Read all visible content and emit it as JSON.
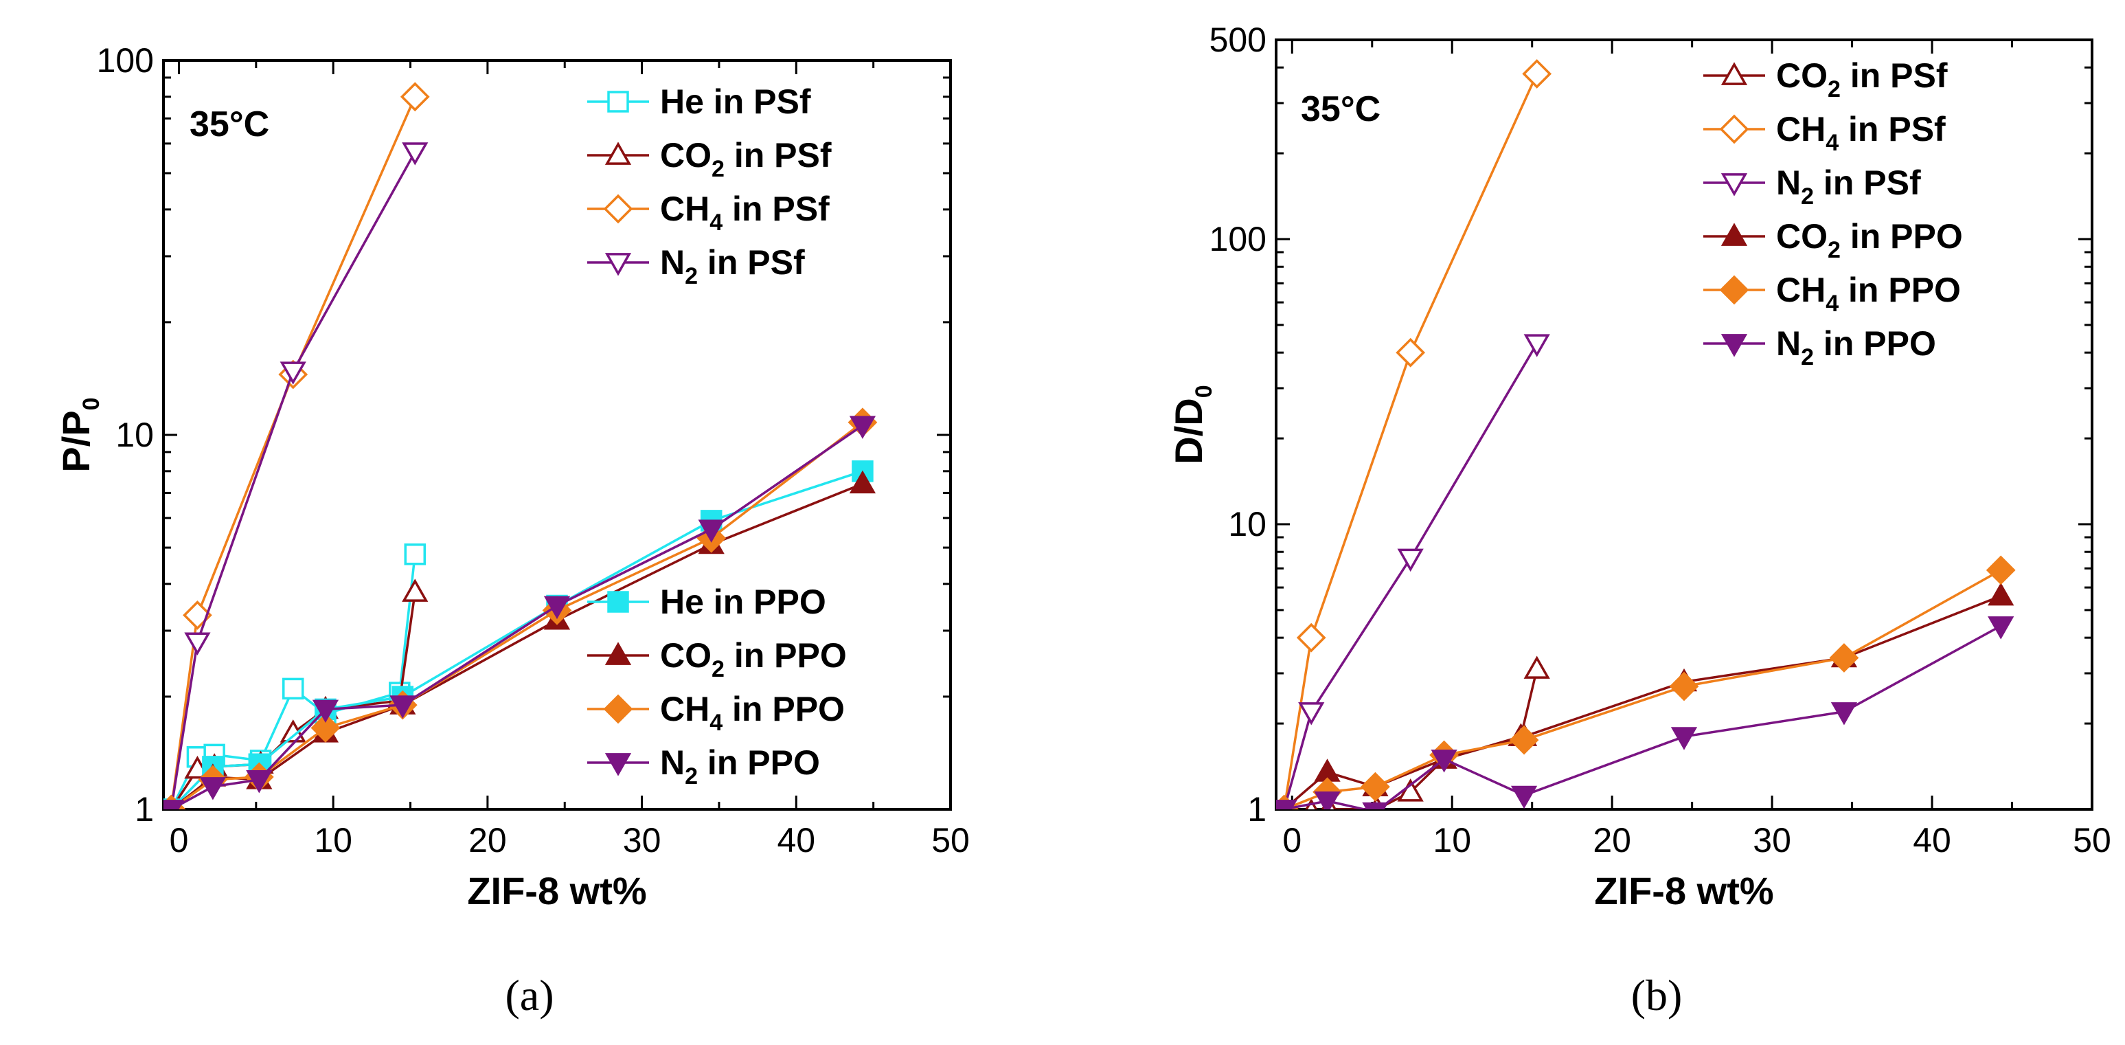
{
  "chart_data": [
    {
      "type": "line",
      "panel": "a",
      "caption": "(a)",
      "annotation": "35°C",
      "xlabel": "ZIF-8 wt%",
      "ylabel": "P/P0",
      "ylabel_main": "P/P",
      "ylabel_sub": "0",
      "yscale": "log",
      "xlim": [
        -1,
        50
      ],
      "ylim": [
        1,
        100
      ],
      "xticks": [
        0,
        10,
        20,
        30,
        40,
        50
      ],
      "yticks": [
        1,
        10,
        100
      ],
      "legends": [
        {
          "position": "top-right",
          "series": [
            0,
            1,
            2,
            3
          ]
        },
        {
          "position": "bottom-right",
          "series": [
            4,
            5,
            6,
            7
          ]
        }
      ],
      "series": [
        {
          "name": "He in PSf",
          "label_main": "He in PSf",
          "label_sub": "",
          "label_rest": "",
          "color": "#22e5ef",
          "marker": "square",
          "filled": false,
          "x": [
            -0.5,
            1.2,
            2.3,
            5.3,
            7.4,
            9.5,
            14.3,
            15.3
          ],
          "y": [
            1.0,
            1.38,
            1.4,
            1.35,
            2.1,
            1.8,
            2.05,
            4.8
          ]
        },
        {
          "name": "CO2 in PSf",
          "label_main": "CO",
          "label_sub": "2",
          "label_rest": " in PSf",
          "color": "#8b1010",
          "marker": "triangle-up",
          "filled": false,
          "x": [
            -0.5,
            1.2,
            2.3,
            5.3,
            7.4,
            9.5,
            14.3,
            15.3
          ],
          "y": [
            1.0,
            1.28,
            1.3,
            1.32,
            1.6,
            1.85,
            1.95,
            3.8
          ]
        },
        {
          "name": "CH4 in PSf",
          "label_main": "CH",
          "label_sub": "4",
          "label_rest": " in PSf",
          "color": "#f07f1a",
          "marker": "diamond",
          "filled": false,
          "x": [
            -0.5,
            1.2,
            7.4,
            15.3
          ],
          "y": [
            1.0,
            3.3,
            14.5,
            80
          ]
        },
        {
          "name": "N2 in PSf",
          "label_main": "N",
          "label_sub": "2",
          "label_rest": " in PSf",
          "color": "#7a1483",
          "marker": "triangle-down",
          "filled": false,
          "x": [
            -0.5,
            1.2,
            7.4,
            15.3
          ],
          "y": [
            1.0,
            2.8,
            14.8,
            57
          ]
        },
        {
          "name": "He in PPO",
          "label_main": "He in PPO",
          "label_sub": "",
          "label_rest": "",
          "color": "#22e5ef",
          "marker": "square",
          "filled": true,
          "x": [
            -0.5,
            2.2,
            5.2,
            9.5,
            14.5,
            24.5,
            34.5,
            44.3
          ],
          "y": [
            1.0,
            1.3,
            1.32,
            1.85,
            2.0,
            3.5,
            5.9,
            8.0
          ]
        },
        {
          "name": "CO2 in PPO",
          "label_main": "CO",
          "label_sub": "2",
          "label_rest": " in PPO",
          "color": "#8b1010",
          "marker": "triangle-up",
          "filled": true,
          "x": [
            -0.5,
            2.2,
            5.2,
            9.5,
            14.5,
            24.5,
            34.5,
            44.3
          ],
          "y": [
            1.0,
            1.22,
            1.2,
            1.6,
            1.9,
            3.2,
            5.1,
            7.4
          ]
        },
        {
          "name": "CH4 in PPO",
          "label_main": "CH",
          "label_sub": "4",
          "label_rest": " in PPO",
          "color": "#f07f1a",
          "marker": "diamond",
          "filled": true,
          "x": [
            -0.5,
            2.2,
            5.2,
            9.5,
            14.5,
            24.5,
            34.5,
            44.3
          ],
          "y": [
            1.0,
            1.2,
            1.22,
            1.65,
            1.9,
            3.4,
            5.3,
            10.8
          ]
        },
        {
          "name": "N2 in PPO",
          "label_main": "N",
          "label_sub": "2",
          "label_rest": " in PPO",
          "color": "#7a1483",
          "marker": "triangle-down",
          "filled": true,
          "x": [
            -0.5,
            2.2,
            5.2,
            9.5,
            14.5,
            24.5,
            34.5,
            44.3
          ],
          "y": [
            1.0,
            1.15,
            1.2,
            1.85,
            1.9,
            3.5,
            5.6,
            10.6
          ]
        }
      ]
    },
    {
      "type": "line",
      "panel": "b",
      "caption": "(b)",
      "annotation": "35°C",
      "xlabel": "ZIF-8 wt%",
      "ylabel": "D/D0",
      "ylabel_main": "D/D",
      "ylabel_sub": "0",
      "yscale": "log",
      "xlim": [
        -1,
        50
      ],
      "ylim": [
        1,
        500
      ],
      "xticks": [
        0,
        10,
        20,
        30,
        40,
        50
      ],
      "yticks": [
        1,
        10,
        100,
        500
      ],
      "legends": [
        {
          "position": "top-right",
          "series": [
            0,
            1,
            2,
            3,
            4,
            5
          ]
        }
      ],
      "series": [
        {
          "name": "CO2 in PSf",
          "label_main": "CO",
          "label_sub": "2",
          "label_rest": " in PSf",
          "color": "#8b1010",
          "marker": "triangle-up",
          "filled": false,
          "x": [
            -0.5,
            1.2,
            2.3,
            5.3,
            7.4,
            9.5,
            14.3,
            15.3
          ],
          "y": [
            1.0,
            0.98,
            1.0,
            1.0,
            1.15,
            1.5,
            1.8,
            3.1
          ]
        },
        {
          "name": "CH4 in PSf",
          "label_main": "CH",
          "label_sub": "4",
          "label_rest": " in PSf",
          "color": "#f07f1a",
          "marker": "diamond",
          "filled": false,
          "x": [
            -0.5,
            1.2,
            7.4,
            15.3
          ],
          "y": [
            1.0,
            4.0,
            40,
            380
          ]
        },
        {
          "name": "N2 in PSf",
          "label_main": "N",
          "label_sub": "2",
          "label_rest": " in PSf",
          "color": "#7a1483",
          "marker": "triangle-down",
          "filled": false,
          "x": [
            -0.5,
            1.2,
            7.4,
            15.3
          ],
          "y": [
            1.0,
            2.2,
            7.6,
            43
          ]
        },
        {
          "name": "CO2 in PPO",
          "label_main": "CO",
          "label_sub": "2",
          "label_rest": " in PPO",
          "color": "#8b1010",
          "marker": "triangle-up",
          "filled": true,
          "x": [
            -0.5,
            2.2,
            5.2,
            9.5,
            14.5,
            24.5,
            34.5,
            44.3
          ],
          "y": [
            1.0,
            1.35,
            1.2,
            1.5,
            1.8,
            2.8,
            3.4,
            5.6
          ]
        },
        {
          "name": "CH4 in PPO",
          "label_main": "CH",
          "label_sub": "4",
          "label_rest": " in PPO",
          "color": "#f07f1a",
          "marker": "diamond",
          "filled": true,
          "x": [
            -0.5,
            2.2,
            5.2,
            9.5,
            14.5,
            24.5,
            34.5,
            44.3
          ],
          "y": [
            1.0,
            1.15,
            1.2,
            1.55,
            1.75,
            2.7,
            3.4,
            6.9
          ]
        },
        {
          "name": "N2 in PPO",
          "label_main": "N",
          "label_sub": "2",
          "label_rest": " in PPO",
          "color": "#7a1483",
          "marker": "triangle-down",
          "filled": true,
          "x": [
            -0.5,
            2.2,
            5.2,
            9.5,
            14.5,
            24.5,
            34.5,
            44.3
          ],
          "y": [
            1.0,
            1.07,
            0.98,
            1.5,
            1.12,
            1.8,
            2.2,
            4.4
          ]
        }
      ]
    }
  ]
}
